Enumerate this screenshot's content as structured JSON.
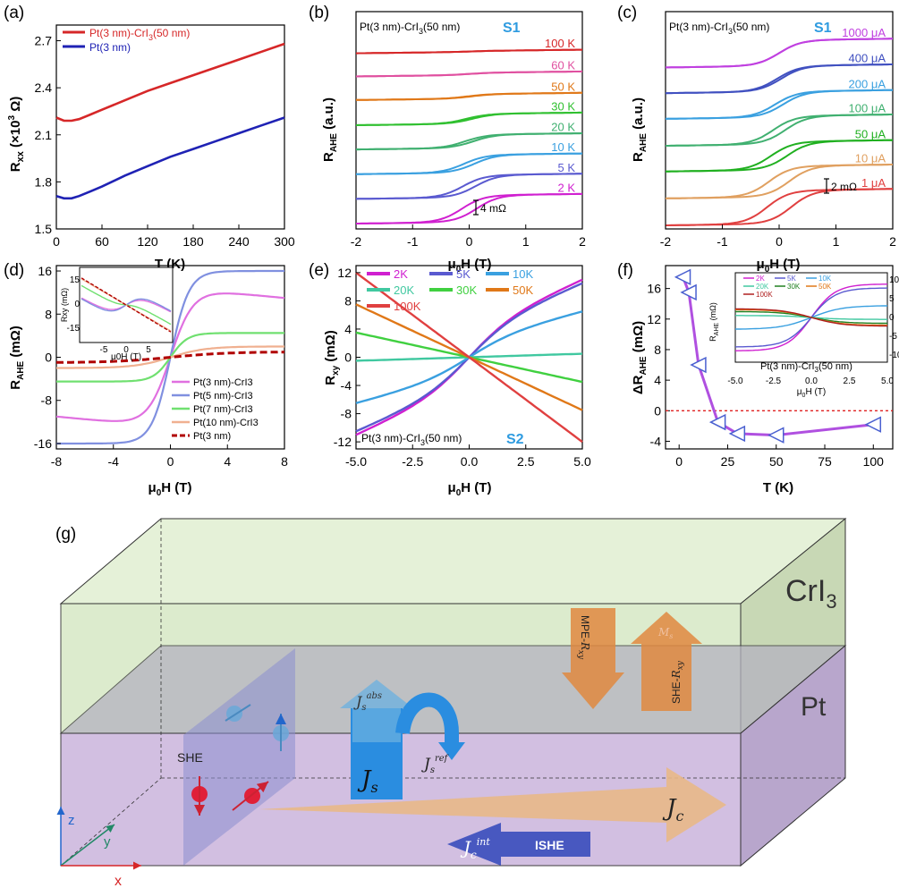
{
  "colors": {
    "red": "#d62728",
    "blue": "#1f22b4",
    "magenta": "#d020d0",
    "indigo": "#5a5ad0",
    "sky": "#3aa0e0",
    "teal": "#40c8a0",
    "green": "#30c030",
    "orange": "#e07818",
    "pink": "#e050a0",
    "lilac": "#9966cc",
    "cyan_accent": "#2e9be0",
    "crI3_fill": "#d8ebc8",
    "pt_fill": "#cdb8de",
    "plane_fill": "#8a8ed0"
  },
  "panels": {
    "a": {
      "label": "(a)",
      "chart_data": {
        "type": "line",
        "xlabel": "T (K)",
        "ylabel": "Rxx (×10^3 Ω)",
        "ylabel_main": "R",
        "ylabel_sub": "xx",
        "ylabel_unit": " (×10",
        "ylabel_sup": "3",
        "ylabel_tail": " Ω)",
        "xlim": [
          0,
          300
        ],
        "ylim": [
          1.5,
          2.8
        ],
        "xticks": [
          "0",
          "60",
          "120",
          "180",
          "240",
          "300"
        ],
        "yticks": [
          "1.5",
          "1.8",
          "2.1",
          "2.4",
          "2.7"
        ],
        "series": [
          {
            "name": "Pt(3 nm)-CrI3(50 nm)",
            "name_a": "Pt(3 nm)-CrI",
            "name_sub": "3",
            "name_b": "(50 nm)",
            "color": "#d62728",
            "x": [
              0,
              10,
              20,
              30,
              45,
              60,
              90,
              120,
              150,
              180,
              210,
              240,
              270,
              300
            ],
            "y": [
              2.21,
              2.19,
              2.19,
              2.2,
              2.23,
              2.26,
              2.32,
              2.38,
              2.43,
              2.48,
              2.53,
              2.58,
              2.63,
              2.68
            ]
          },
          {
            "name": "Pt(3 nm)",
            "color": "#1f22b4",
            "x": [
              0,
              10,
              20,
              30,
              45,
              60,
              90,
              120,
              150,
              180,
              210,
              240,
              270,
              300
            ],
            "y": [
              1.71,
              1.695,
              1.695,
              1.71,
              1.74,
              1.77,
              1.84,
              1.9,
              1.96,
              2.01,
              2.06,
              2.11,
              2.16,
              2.21
            ]
          }
        ]
      }
    },
    "b": {
      "label": "(b)",
      "chart_data": {
        "type": "line",
        "title": "Pt(3 nm)-CrI3(50 nm)",
        "title_a": "Pt(3 nm)-CrI",
        "title_sub": "3",
        "title_b": "(50 nm)",
        "tag": "S1",
        "xlabel": "μ0H (T)",
        "ylabel": "RAHE (a.u.)",
        "xlim": [
          -2,
          2
        ],
        "xticks": [
          "-2",
          "-1",
          "0",
          "1",
          "2"
        ],
        "scale_bar": "4 mΩ",
        "series": [
          {
            "name": "100 K",
            "color": "#d62728",
            "offset": 8,
            "amp": 0.02
          },
          {
            "name": "60 K",
            "color": "#e050a0",
            "offset": 7,
            "amp": 0.05
          },
          {
            "name": "50 K",
            "color": "#e07818",
            "offset": 6,
            "amp": 0.1
          },
          {
            "name": "30 K",
            "color": "#30c030",
            "offset": 5,
            "amp": 0.22
          },
          {
            "name": "20 K",
            "color": "#40b070",
            "offset": 4,
            "amp": 0.3
          },
          {
            "name": "10 K",
            "color": "#3aa0e0",
            "offset": 3,
            "amp": 0.4
          },
          {
            "name": "5 K",
            "color": "#5a5ad0",
            "offset": 2,
            "amp": 0.5
          },
          {
            "name": "2 K",
            "color": "#d020d0",
            "offset": 1,
            "amp": 0.6
          }
        ]
      }
    },
    "c": {
      "label": "(c)",
      "chart_data": {
        "type": "line",
        "title": "Pt(3 nm)-CrI3(50 nm)",
        "title_a": "Pt(3 nm)-CrI",
        "title_sub": "3",
        "title_b": "(50 nm)",
        "tag": "S1",
        "xlabel": "μ0H (T)",
        "ylabel": "RAHE (a.u.)",
        "xlim": [
          -2,
          2
        ],
        "xticks": [
          "-2",
          "-1",
          "0",
          "1",
          "2"
        ],
        "scale_bar": "2 mΩ",
        "series": [
          {
            "name": "1000 μA",
            "color": "#c040e0",
            "offset": 7,
            "amp": 0.5
          },
          {
            "name": "400 μA",
            "color": "#4050c0",
            "offset": 6,
            "amp": 0.5
          },
          {
            "name": "200 μA",
            "color": "#3aa0e0",
            "offset": 5,
            "amp": 0.5
          },
          {
            "name": "100 μA",
            "color": "#40b070",
            "offset": 4,
            "amp": 0.55
          },
          {
            "name": "50 μA",
            "color": "#20b020",
            "offset": 3,
            "amp": 0.55
          },
          {
            "name": "10 μA",
            "color": "#e0a060",
            "offset": 2,
            "amp": 0.6
          },
          {
            "name": "1 μA",
            "color": "#e04040",
            "offset": 1,
            "amp": 0.65
          }
        ]
      }
    },
    "d": {
      "label": "(d)",
      "chart_data": {
        "type": "line",
        "xlabel": "μ0H (T)",
        "ylabel": "RAHE (mΩ)",
        "xlim": [
          -8,
          8
        ],
        "ylim": [
          -17,
          17
        ],
        "xticks": [
          "-8",
          "-4",
          "0",
          "4",
          "8"
        ],
        "yticks": [
          "16",
          "8",
          "0",
          "-8",
          "-16"
        ],
        "series": [
          {
            "name": "Pt(3 nm)-CrI3",
            "color": "#e070e0",
            "sat": 13,
            "width": 1.6
          },
          {
            "name": "Pt(5 nm)-CrI3",
            "color": "#8090e0",
            "sat": 16,
            "width": 1.3
          },
          {
            "name": "Pt(7 nm)-CrI3",
            "color": "#70e070",
            "sat": 4.5,
            "width": 1.2
          },
          {
            "name": "Pt(10 nm)-CrI3",
            "color": "#f0b090",
            "sat": 2,
            "width": 2.5
          },
          {
            "name": "Pt(3 nm)",
            "color": "#b00000",
            "sat": 1,
            "width": 6
          }
        ],
        "inset": {
          "ylabel": "Rxy (mΩ)",
          "xlabel": "μ0H (T)",
          "xticks": [
            "-5",
            "0",
            "5"
          ],
          "yticks": [
            "15",
            "0",
            "-15"
          ]
        }
      }
    },
    "e": {
      "label": "(e)",
      "chart_data": {
        "type": "line",
        "title": "Pt(3 nm)-CrI3(50 nm)",
        "tag": "S2",
        "xlabel": "μ0H (T)",
        "ylabel": "Rxy (mΩ)",
        "xlim": [
          -5,
          5
        ],
        "ylim": [
          -13,
          13
        ],
        "xticks": [
          "-5.0",
          "-2.5",
          "0.0",
          "2.5",
          "5.0"
        ],
        "yticks": [
          "12",
          "8",
          "4",
          "0",
          "-4",
          "-8",
          "-12"
        ],
        "series": [
          {
            "name": "2K",
            "color": "#d020d0",
            "end": 11,
            "width": 1.5
          },
          {
            "name": "5K",
            "color": "#5a5ad0",
            "end": 10.5,
            "width": 1.5
          },
          {
            "name": "10K",
            "color": "#3aa0e0",
            "end": 6.5,
            "width": 1.5
          },
          {
            "name": "20K",
            "color": "#40c8a0",
            "end": 0.5,
            "width": 1.5
          },
          {
            "name": "30K",
            "color": "#40d040",
            "end": -3.5,
            "width": 1.5
          },
          {
            "name": "50K",
            "color": "#e07818",
            "end": -7.5,
            "width": 1.5
          },
          {
            "name": "100K",
            "color": "#e04040",
            "end": -12,
            "width": 1.5
          }
        ]
      }
    },
    "f": {
      "label": "(f)",
      "chart_data": {
        "type": "scatter",
        "xlabel": "T (K)",
        "ylabel": "ΔRAHE (mΩ)",
        "xlim": [
          -7,
          110
        ],
        "ylim": [
          -5,
          19
        ],
        "xticks": [
          "0",
          "25",
          "50",
          "75",
          "100"
        ],
        "yticks": [
          "16",
          "12",
          "8",
          "4",
          "0",
          "-4"
        ],
        "x": [
          2,
          5,
          10,
          20,
          30,
          50,
          100
        ],
        "y": [
          17.5,
          15.5,
          6,
          -1.5,
          -3,
          -3.2,
          -1.8
        ],
        "inset": {
          "title": "Pt(3 nm)-CrI3(50 nm)",
          "ylabel": "RAHE (mΩ)",
          "xlabel": "μ0H (T)",
          "xticks": [
            "-5.0",
            "-2.5",
            "0.0",
            "2.5",
            "5.0"
          ],
          "yticks": [
            "10",
            "5",
            "0",
            "-5",
            "-10"
          ],
          "legend": [
            "2K",
            "5K",
            "10K",
            "20K",
            "30K",
            "50K",
            "100K"
          ]
        }
      }
    },
    "g": {
      "label": "(g)",
      "layer_top": "CrI3",
      "layer_bottom": "Pt",
      "labels": {
        "she": "SHE",
        "ishe": "ISHE",
        "js": "J",
        "js_sub": "s",
        "js_abs": "J",
        "js_abs_sub": "s",
        "js_abs_sup": "abs",
        "js_ref": "J",
        "js_ref_sub": "s",
        "js_ref_sup": "ref",
        "jc": "J",
        "jc_sub": "c",
        "jc_int": "J",
        "jc_int_sub": "c",
        "jc_int_sup": "int",
        "mpe": "MPE-Rxy",
        "she_rxy": "SHE-Rxy",
        "ms": "Ms",
        "axis_z": "z",
        "axis_y": "y",
        "axis_x": "x"
      }
    }
  }
}
